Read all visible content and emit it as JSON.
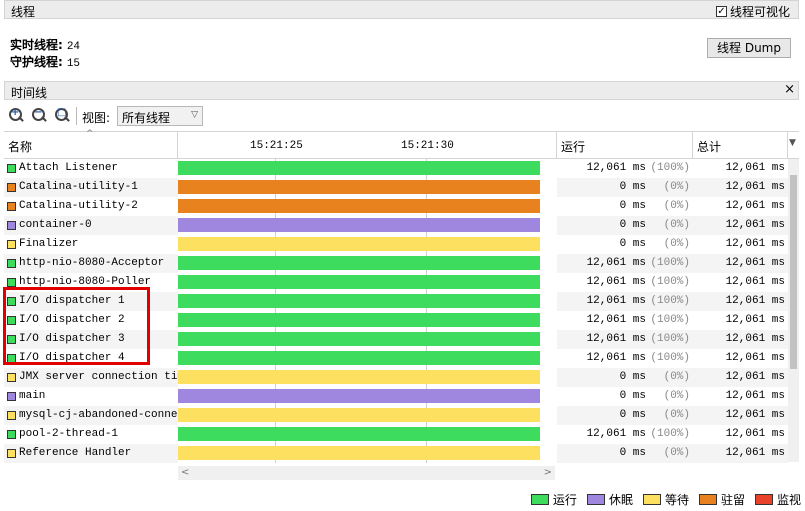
{
  "threads_panel": {
    "title": "线程",
    "visualize_label": "线程可视化",
    "visualize_checked": true,
    "live_label": "实时线程:",
    "live_value": "24",
    "daemon_label": "守护线程:",
    "daemon_value": "15",
    "dump_button": "线程 Dump"
  },
  "timeline_panel": {
    "title": "时间线",
    "close_glyph": "×",
    "view_label": "视图:",
    "view_selected": "所有线程"
  },
  "columns": {
    "name": "名称",
    "time1": "15:21:25",
    "time2": "15:21:30",
    "running": "运行",
    "total": "总计"
  },
  "colors": {
    "running": "#3ddc5f",
    "sleeping": "#9f87e0",
    "waiting": "#fde05f",
    "parked": "#e8821e",
    "monitor": "#e8422a"
  },
  "rows": [
    {
      "name": "Attach Listener",
      "state": "running",
      "run": "12,061 ms",
      "pct": "(100%)",
      "total": "12,061 ms"
    },
    {
      "name": "Catalina-utility-1",
      "state": "parked",
      "run": "0 ms",
      "pct": "(0%)",
      "total": "12,061 ms"
    },
    {
      "name": "Catalina-utility-2",
      "state": "parked",
      "run": "0 ms",
      "pct": "(0%)",
      "total": "12,061 ms"
    },
    {
      "name": "container-0",
      "state": "sleeping",
      "run": "0 ms",
      "pct": "(0%)",
      "total": "12,061 ms"
    },
    {
      "name": "Finalizer",
      "state": "waiting",
      "run": "0 ms",
      "pct": "(0%)",
      "total": "12,061 ms"
    },
    {
      "name": "http-nio-8080-Acceptor",
      "state": "running",
      "run": "12,061 ms",
      "pct": "(100%)",
      "total": "12,061 ms"
    },
    {
      "name": "http-nio-8080-Poller",
      "state": "running",
      "run": "12,061 ms",
      "pct": "(100%)",
      "total": "12,061 ms"
    },
    {
      "name": "I/O dispatcher 1",
      "state": "running",
      "run": "12,061 ms",
      "pct": "(100%)",
      "total": "12,061 ms"
    },
    {
      "name": "I/O dispatcher 2",
      "state": "running",
      "run": "12,061 ms",
      "pct": "(100%)",
      "total": "12,061 ms"
    },
    {
      "name": "I/O dispatcher 3",
      "state": "running",
      "run": "12,061 ms",
      "pct": "(100%)",
      "total": "12,061 ms"
    },
    {
      "name": "I/O dispatcher 4",
      "state": "running",
      "run": "12,061 ms",
      "pct": "(100%)",
      "total": "12,061 ms"
    },
    {
      "name": "JMX server connection timeout",
      "state": "waiting",
      "run": "0 ms",
      "pct": "(0%)",
      "total": "12,061 ms"
    },
    {
      "name": "main",
      "state": "sleeping",
      "run": "0 ms",
      "pct": "(0%)",
      "total": "12,061 ms"
    },
    {
      "name": "mysql-cj-abandoned-connection-cleanup",
      "state": "waiting",
      "run": "0 ms",
      "pct": "(0%)",
      "total": "12,061 ms"
    },
    {
      "name": "pool-2-thread-1",
      "state": "running",
      "run": "12,061 ms",
      "pct": "(100%)",
      "total": "12,061 ms"
    },
    {
      "name": "Reference Handler",
      "state": "waiting",
      "run": "0 ms",
      "pct": "(0%)",
      "total": "12,061 ms"
    }
  ],
  "legend": [
    {
      "label": "运行",
      "state": "running"
    },
    {
      "label": "休眠",
      "state": "sleeping"
    },
    {
      "label": "等待",
      "state": "waiting"
    },
    {
      "label": "驻留",
      "state": "parked"
    },
    {
      "label": "监视",
      "state": "monitor"
    }
  ]
}
